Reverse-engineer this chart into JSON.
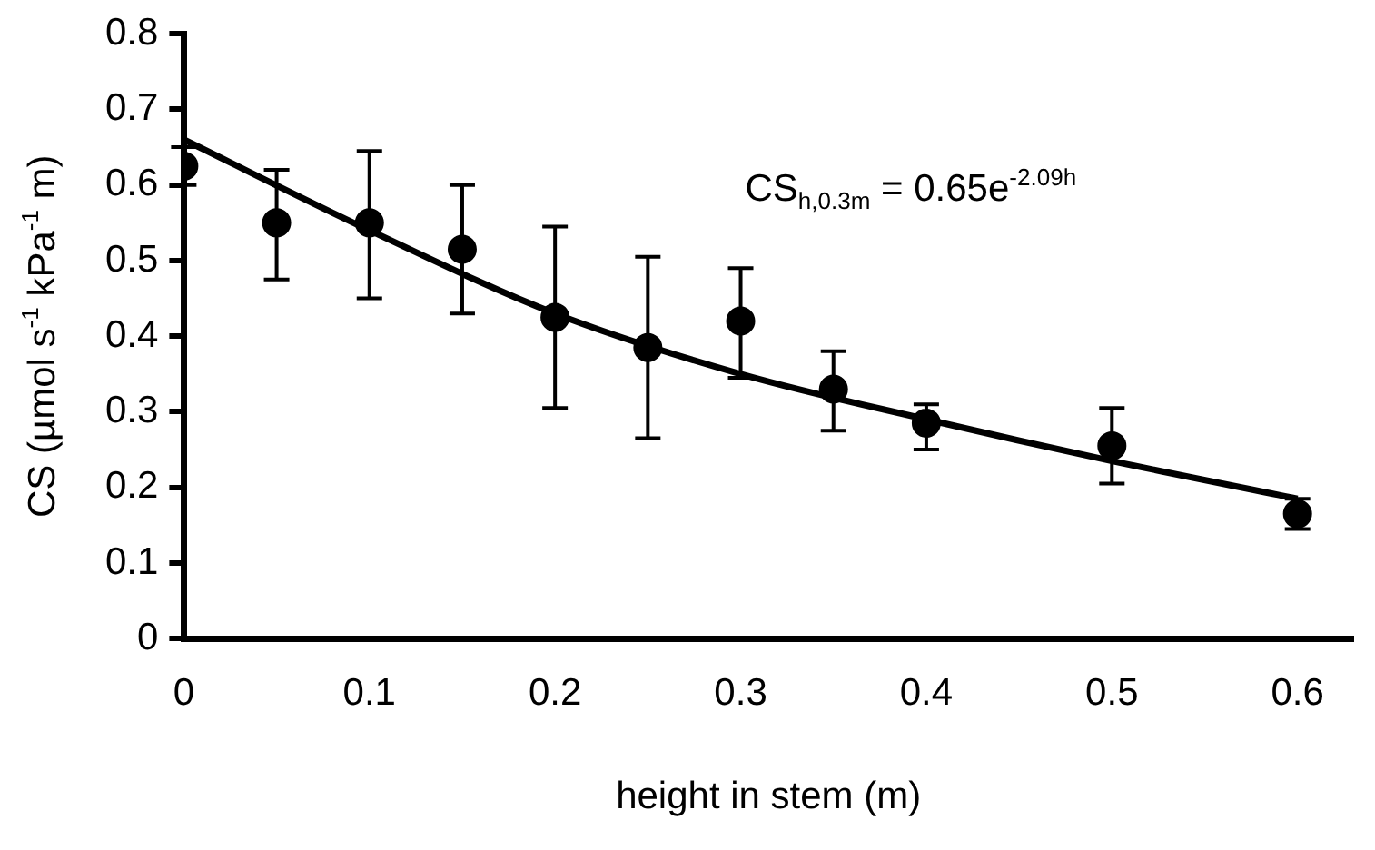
{
  "chart_data": {
    "type": "scatter",
    "xlabel": "height in stem (m)",
    "ylabel": "CS (µmol s$^{-1}$ kPa$^{-1}$ m)",
    "annotations": [
      "CS$_{h,0.3m}$ = 0.65e$^{-2.09h}$"
    ],
    "series": [
      {
        "color": "#000000",
        "marker": "circle",
        "x": [
          0,
          0.05,
          0.1,
          0.15,
          0.2,
          0.25,
          0.3,
          0.35,
          0.4,
          0.5,
          0.6
        ],
        "values": [
          0.625,
          0.55,
          0.55,
          0.515,
          0.425,
          0.385,
          0.42,
          0.33,
          0.285,
          0.255,
          0.165
        ],
        "errors": [
          [
            0.6,
            0.65
          ],
          [
            0.475,
            0.62
          ],
          [
            0.45,
            0.645
          ],
          [
            0.43,
            0.6
          ],
          [
            0.305,
            0.545
          ],
          [
            0.265,
            0.505
          ],
          [
            0.345,
            0.49
          ],
          [
            0.275,
            0.38
          ],
          [
            0.25,
            0.31
          ],
          [
            0.205,
            0.305
          ],
          [
            0.145,
            0.185
          ]
        ]
      },
      {
        "type": "line",
        "color": "#000000",
        "marker": "none",
        "line_style": "solid",
        "x": [
          0,
          0.1,
          0.2,
          0.3,
          0.4,
          0.5,
          0.6
        ],
        "values": [
          0.66,
          0.54,
          0.43,
          0.35,
          0.29,
          0.235,
          0.185
        ]
      }
    ],
    "xlim": [
      0,
      0.63
    ],
    "xticks": [
      0,
      0.1,
      0.2,
      0.3,
      0.4,
      0.5,
      0.6
    ],
    "ylim": [
      0,
      0.8
    ],
    "yticks": [
      0,
      0.1,
      0.2,
      0.3,
      0.4,
      0.5,
      0.6,
      0.7,
      0.8
    ],
    "grid": false,
    "legend": false
  }
}
